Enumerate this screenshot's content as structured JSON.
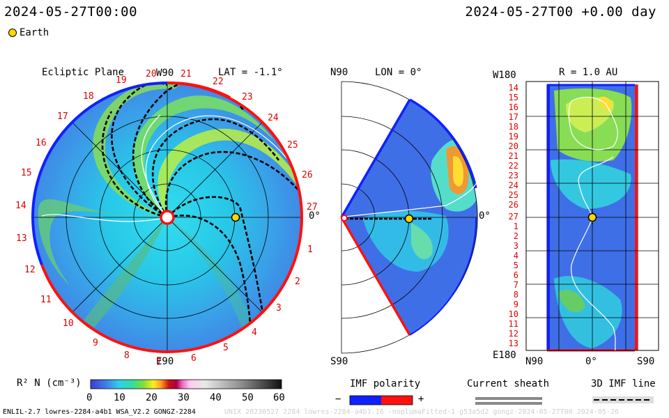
{
  "header": {
    "left_time": "2024-05-27T00:00",
    "right_time": "2024-05-27T00 +0.00 day",
    "legend_earth": "Earth"
  },
  "panel_ecliptic": {
    "title": "Ecliptic Plane",
    "lat_label": "LAT = -1.1°",
    "top_dir": "W90",
    "bottom_dir": "E90",
    "right_angle": "0°",
    "day_labels": [
      "19",
      "20",
      "21",
      "22",
      "23",
      "24",
      "25",
      "26",
      "27",
      "1",
      "2",
      "3",
      "4",
      "5",
      "6",
      "7",
      "8",
      "9",
      "10",
      "11",
      "12",
      "13",
      "14",
      "15",
      "16",
      "17",
      "18"
    ]
  },
  "panel_meridional": {
    "top_left": "N90",
    "lon_label": "LON = 0°",
    "bottom_left": "S90",
    "right_angle": "0°"
  },
  "panel_radial": {
    "top_left": "W180",
    "r_label": "R = 1.0 AU",
    "bottom_left": "E180",
    "x_left": "N90",
    "x_mid": "0°",
    "x_right": "S90",
    "y_labels": [
      "14",
      "15",
      "16",
      "17",
      "18",
      "19",
      "20",
      "21",
      "22",
      "23",
      "24",
      "25",
      "26",
      "27",
      "1",
      "2",
      "3",
      "4",
      "5",
      "6",
      "7",
      "8",
      "9",
      "10",
      "11",
      "12",
      "13"
    ]
  },
  "colorbar": {
    "label": "R² N (cm⁻³)",
    "ticks": [
      "0",
      "10",
      "20",
      "30",
      "40",
      "50",
      "60"
    ]
  },
  "legends": {
    "imf_title": "IMF polarity",
    "imf_minus": "−",
    "imf_plus": "+",
    "sheath_title": "Current sheath",
    "imf3d_title": "3D IMF line"
  },
  "footer": {
    "left": "ENLIL-2.7 lowres-2284-a4b1 WSA_V2.2 GONGZ-2284",
    "right": "UNIX 20230527 2284  lowres-2284-a4b1.16 -noplumaFitted-1 g53a5d2 gongz-2024-05-27T00    2024-05-26"
  },
  "colors": {
    "imf_negative": "#0000ff",
    "imf_positive": "#ff0000",
    "earth": "#ffd700"
  }
}
